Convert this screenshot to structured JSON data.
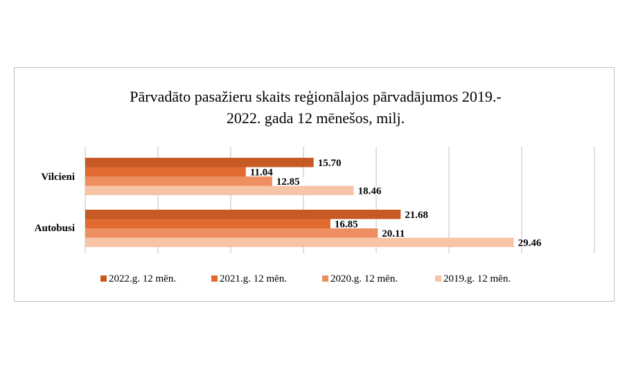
{
  "chart_data": {
    "type": "bar",
    "orientation": "horizontal",
    "title": "Pārvadāto pasažieru skaits reģionālajos pārvadājumos 2019.-2022. gada 12 mēnešos, milj.",
    "title_lines": [
      "Pārvadāto pasažieru skaits reģionālajos pārvadājumos 2019.-",
      "2022. gada 12 mēnešos, milj."
    ],
    "categories": [
      "Vilcieni",
      "Autobusi"
    ],
    "series": [
      {
        "name": "2022.g. 12 mēn.",
        "color": "#C55A24",
        "values": [
          15.7,
          21.68
        ],
        "labels": [
          "15.70",
          "21.68"
        ]
      },
      {
        "name": "2021.g. 12 mēn.",
        "color": "#E06A2F",
        "values": [
          11.04,
          16.85
        ],
        "labels": [
          "11.04",
          "16.85"
        ]
      },
      {
        "name": "2020.g. 12 mēn.",
        "color": "#EE8F62",
        "values": [
          12.85,
          20.11
        ],
        "labels": [
          "12.85",
          "20.11"
        ]
      },
      {
        "name": "2019.g. 12 mēn.",
        "color": "#F8C4A8",
        "values": [
          18.46,
          29.46
        ],
        "labels": [
          "18.46",
          "29.46"
        ]
      }
    ],
    "xlim": [
      0,
      35
    ],
    "grid": true,
    "legend_position": "bottom"
  }
}
